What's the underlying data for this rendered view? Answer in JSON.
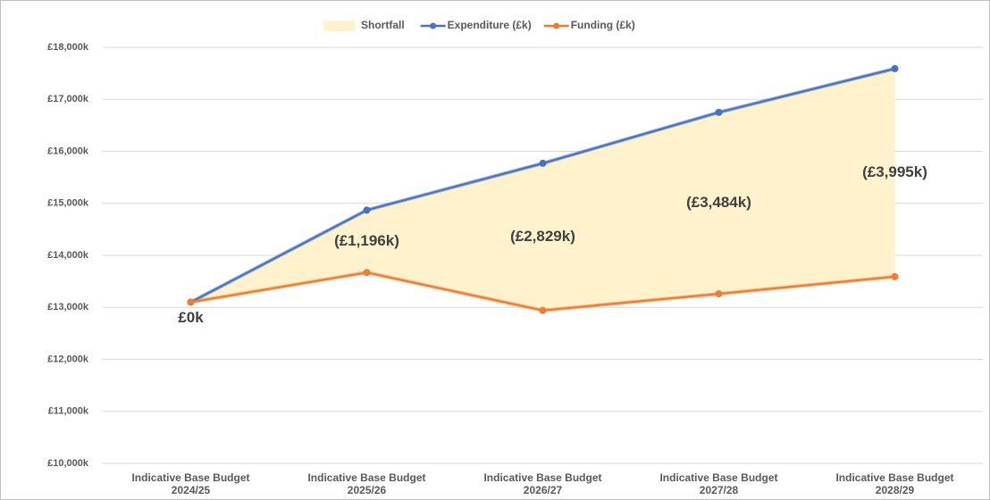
{
  "chart_data": {
    "type": "line",
    "categories": [
      "Indicative Base Budget 2024/25",
      "Indicative Base Budget 2025/26",
      "Indicative Base Budget 2026/27",
      "Indicative Base Budget 2027/28",
      "Indicative Base Budget 2028/29"
    ],
    "series": [
      {
        "name": "Expenditure (£k)",
        "color": "#4472c4",
        "values": [
          13100,
          14870,
          15770,
          16750,
          17590
        ]
      },
      {
        "name": "Funding (£k)",
        "color": "#ed7d31",
        "values": [
          13100,
          13670,
          12940,
          13260,
          13590
        ]
      }
    ],
    "shortfall": {
      "name": "Shortfall",
      "color": "#fff2cc",
      "values": [
        0,
        -1196,
        -2829,
        -3484,
        -3995
      ],
      "value_labels": [
        "£0k",
        "(£1,196k)",
        "(£2,829k)",
        "(£3,484k)",
        "(£3,995k)"
      ]
    },
    "ylim": [
      10000,
      18000
    ],
    "yticks": [
      {
        "value": 10000,
        "label": "£10,000k"
      },
      {
        "value": 11000,
        "label": "£11,000k"
      },
      {
        "value": 12000,
        "label": "£12,000k"
      },
      {
        "value": 13000,
        "label": "£13,000k"
      },
      {
        "value": 14000,
        "label": "£14,000k"
      },
      {
        "value": 15000,
        "label": "£15,000k"
      },
      {
        "value": 16000,
        "label": "£16,000k"
      },
      {
        "value": 17000,
        "label": "£17,000k"
      },
      {
        "value": 18000,
        "label": "£18,000k"
      }
    ],
    "grid": true,
    "legend": "top"
  }
}
